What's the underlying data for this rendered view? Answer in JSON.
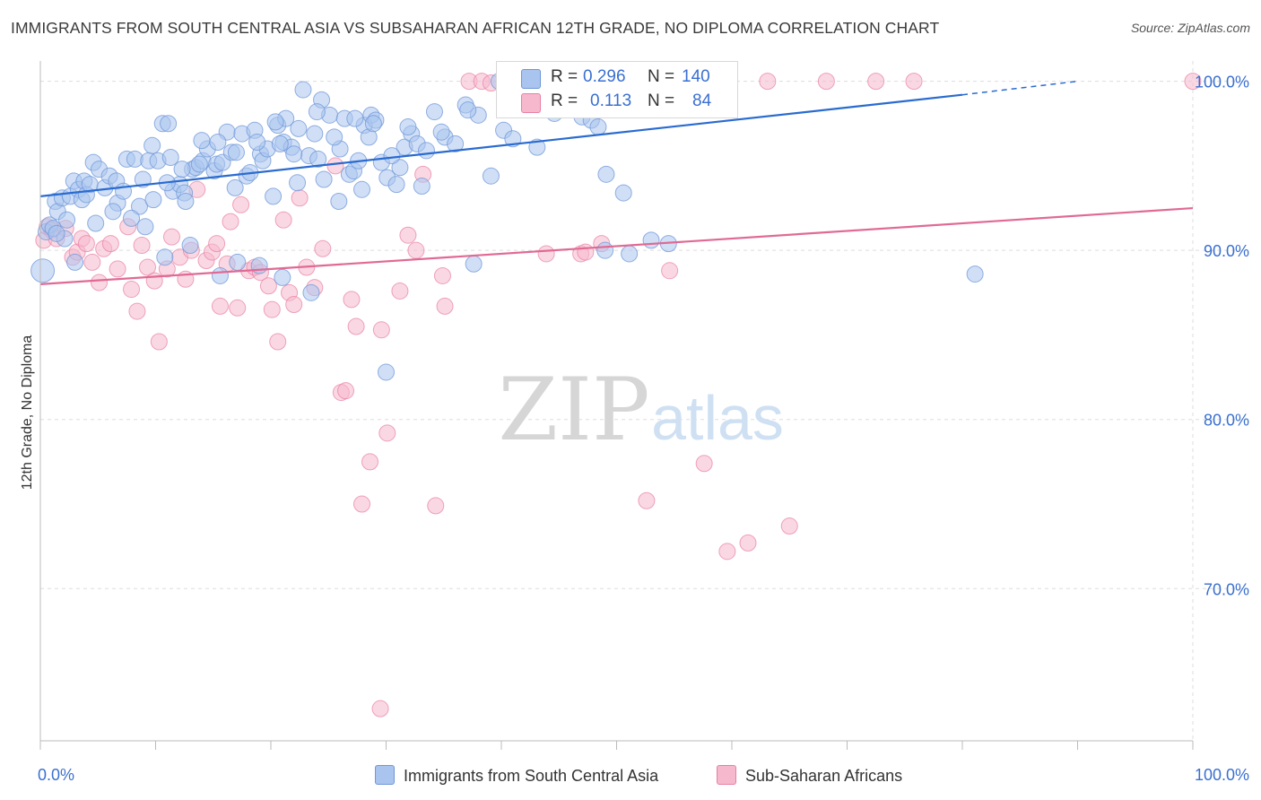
{
  "title": "IMMIGRANTS FROM SOUTH CENTRAL ASIA VS SUBSAHARAN AFRICAN 12TH GRADE, NO DIPLOMA CORRELATION CHART",
  "source": "Source: ZipAtlas.com",
  "watermark": {
    "zip": "ZIP",
    "atlas": "atlas"
  },
  "legend": {
    "r_label": "R =",
    "n_label": "N =",
    "rows": [
      {
        "r": "0.296",
        "n": "140"
      },
      {
        "r": "0.113",
        "n": "84"
      }
    ]
  },
  "colors": {
    "blue_fill": "#a9c4ee",
    "blue_stroke": "#6f97d8",
    "blue_line": "#2a6bd0",
    "pink_fill": "#f6b8cc",
    "pink_stroke": "#e87fa2",
    "pink_line": "#e06a94",
    "tick_label": "#3a6fd1",
    "grid": "#dddddd"
  },
  "chart_data": {
    "type": "scatter",
    "title": "IMMIGRANTS FROM SOUTH CENTRAL ASIA VS SUBSAHARAN AFRICAN 12TH GRADE, NO DIPLOMA CORRELATION CHART",
    "xlabel": "",
    "ylabel": "12th Grade, No Diploma",
    "x_tick_labels": [
      "0.0%",
      "100.0%"
    ],
    "y_tick_labels": [
      "70.0%",
      "80.0%",
      "90.0%",
      "100.0%"
    ],
    "y_ticks": [
      70,
      80,
      90,
      100
    ],
    "xlim": [
      0,
      100
    ],
    "ylim": [
      61.0,
      101.2
    ],
    "grid": true,
    "legend_position": "top-center",
    "series": [
      {
        "name": "Immigrants from South Central Asia",
        "color": "#a9c4ee",
        "trend": {
          "x": [
            0,
            80
          ],
          "y": [
            93.2,
            99.2
          ],
          "dashed_to": [
            90,
            100.0
          ]
        },
        "points": [
          [
            0.2,
            88.8
          ],
          [
            0.5,
            91.1
          ],
          [
            0.8,
            91.5
          ],
          [
            1.1,
            91.3
          ],
          [
            1.3,
            92.9
          ],
          [
            1.5,
            92.3
          ],
          [
            1.9,
            93.1
          ],
          [
            2.1,
            90.7
          ],
          [
            2.6,
            93.2
          ],
          [
            2.9,
            94.1
          ],
          [
            3.3,
            93.6
          ],
          [
            3.6,
            93.0
          ],
          [
            3.8,
            94.1
          ],
          [
            4.0,
            93.3
          ],
          [
            4.3,
            93.9
          ],
          [
            4.6,
            95.2
          ],
          [
            5.1,
            94.8
          ],
          [
            5.6,
            93.7
          ],
          [
            6.0,
            94.4
          ],
          [
            6.6,
            94.1
          ],
          [
            6.7,
            92.8
          ],
          [
            7.2,
            93.5
          ],
          [
            7.5,
            95.4
          ],
          [
            8.2,
            95.4
          ],
          [
            8.6,
            92.6
          ],
          [
            8.9,
            94.2
          ],
          [
            9.4,
            95.3
          ],
          [
            9.7,
            96.2
          ],
          [
            10.2,
            95.3
          ],
          [
            10.6,
            97.5
          ],
          [
            11.1,
            97.5
          ],
          [
            11.3,
            95.5
          ],
          [
            11.5,
            93.5
          ],
          [
            12.1,
            93.9
          ],
          [
            12.5,
            93.4
          ],
          [
            12.6,
            92.9
          ],
          [
            13.2,
            94.8
          ],
          [
            13.5,
            94.9
          ],
          [
            14.1,
            95.3
          ],
          [
            14.5,
            96.0
          ],
          [
            15.1,
            94.7
          ],
          [
            15.3,
            95.1
          ],
          [
            15.8,
            95.2
          ],
          [
            16.2,
            97.0
          ],
          [
            16.9,
            93.7
          ],
          [
            17.5,
            96.9
          ],
          [
            17.9,
            94.4
          ],
          [
            18.6,
            97.1
          ],
          [
            19.1,
            95.7
          ],
          [
            19.3,
            95.3
          ],
          [
            19.7,
            96.0
          ],
          [
            20.2,
            93.2
          ],
          [
            20.6,
            97.4
          ],
          [
            21.1,
            96.4
          ],
          [
            21.3,
            97.8
          ],
          [
            21.8,
            96.1
          ],
          [
            22.3,
            94.0
          ],
          [
            22.8,
            99.5
          ],
          [
            23.3,
            95.6
          ],
          [
            23.8,
            96.9
          ],
          [
            24.1,
            95.4
          ],
          [
            24.4,
            98.9
          ],
          [
            25.1,
            98.0
          ],
          [
            25.9,
            92.9
          ],
          [
            26.4,
            97.8
          ],
          [
            26.8,
            94.5
          ],
          [
            27.2,
            94.7
          ],
          [
            27.6,
            95.3
          ],
          [
            28.1,
            97.4
          ],
          [
            28.5,
            96.7
          ],
          [
            28.7,
            98.0
          ],
          [
            29.1,
            97.7
          ],
          [
            30.1,
            94.3
          ],
          [
            30.9,
            93.9
          ],
          [
            31.6,
            96.1
          ],
          [
            32.2,
            96.9
          ],
          [
            32.7,
            96.3
          ],
          [
            33.1,
            93.8
          ],
          [
            34.2,
            98.2
          ],
          [
            35.1,
            96.7
          ],
          [
            36.0,
            96.3
          ],
          [
            36.9,
            98.6
          ],
          [
            38.0,
            98.0
          ],
          [
            39.1,
            94.4
          ],
          [
            40.2,
            97.1
          ],
          [
            41.0,
            96.6
          ],
          [
            42.3,
            98.4
          ],
          [
            43.1,
            96.1
          ],
          [
            44.2,
            99.2
          ],
          [
            45.1,
            98.3
          ],
          [
            46.3,
            98.9
          ],
          [
            47.0,
            97.9
          ],
          [
            47.8,
            97.7
          ],
          [
            48.4,
            97.3
          ],
          [
            49.1,
            94.5
          ],
          [
            50.6,
            93.4
          ],
          [
            1.4,
            91.0
          ],
          [
            2.3,
            91.8
          ],
          [
            3.0,
            89.3
          ],
          [
            4.8,
            91.6
          ],
          [
            6.3,
            92.3
          ],
          [
            7.9,
            91.9
          ],
          [
            9.1,
            91.4
          ],
          [
            10.8,
            89.6
          ],
          [
            13.0,
            90.3
          ],
          [
            15.6,
            88.5
          ],
          [
            17.1,
            89.3
          ],
          [
            19.0,
            89.1
          ],
          [
            21.0,
            88.4
          ],
          [
            23.5,
            87.5
          ],
          [
            14.0,
            96.5
          ],
          [
            16.6,
            95.8
          ],
          [
            18.2,
            94.6
          ],
          [
            20.8,
            96.3
          ],
          [
            22.0,
            95.7
          ],
          [
            24.6,
            94.2
          ],
          [
            26.0,
            96.0
          ],
          [
            27.9,
            93.6
          ],
          [
            29.6,
            95.2
          ],
          [
            31.2,
            94.9
          ],
          [
            30.0,
            82.8
          ],
          [
            37.6,
            89.2
          ],
          [
            41.5,
            100.0
          ],
          [
            44.6,
            98.1
          ],
          [
            47.5,
            98.6
          ],
          [
            53.0,
            90.6
          ],
          [
            54.5,
            90.4
          ],
          [
            51.1,
            89.8
          ],
          [
            49.0,
            90.0
          ],
          [
            43.7,
            100.0
          ],
          [
            39.8,
            100.0
          ],
          [
            37.1,
            98.3
          ],
          [
            34.8,
            97.0
          ],
          [
            33.5,
            95.9
          ],
          [
            31.9,
            97.3
          ],
          [
            30.5,
            95.6
          ],
          [
            28.9,
            97.5
          ],
          [
            27.3,
            97.8
          ],
          [
            25.5,
            96.7
          ],
          [
            24.0,
            98.2
          ],
          [
            22.4,
            97.2
          ],
          [
            20.4,
            97.6
          ],
          [
            18.8,
            96.4
          ],
          [
            17.0,
            95.8
          ],
          [
            15.4,
            96.4
          ],
          [
            13.8,
            95.1
          ],
          [
            12.3,
            94.8
          ],
          [
            11.0,
            94.0
          ],
          [
            81.1,
            88.6
          ],
          [
            9.8,
            93.0
          ]
        ]
      },
      {
        "name": "Sub-Saharan Africans",
        "color": "#f6b8cc",
        "trend": {
          "x": [
            0,
            100
          ],
          "y": [
            88.0,
            92.5
          ]
        },
        "points": [
          [
            0.3,
            90.6
          ],
          [
            0.6,
            91.4
          ],
          [
            1.0,
            91.2
          ],
          [
            1.4,
            90.7
          ],
          [
            2.2,
            91.3
          ],
          [
            2.8,
            89.6
          ],
          [
            3.2,
            89.9
          ],
          [
            3.6,
            90.7
          ],
          [
            4.0,
            90.4
          ],
          [
            4.5,
            89.3
          ],
          [
            5.1,
            88.1
          ],
          [
            5.5,
            90.1
          ],
          [
            6.1,
            90.4
          ],
          [
            6.7,
            88.9
          ],
          [
            7.6,
            91.4
          ],
          [
            7.9,
            87.7
          ],
          [
            8.4,
            86.4
          ],
          [
            8.8,
            90.3
          ],
          [
            9.3,
            89.0
          ],
          [
            9.9,
            88.2
          ],
          [
            10.3,
            84.6
          ],
          [
            11.0,
            88.9
          ],
          [
            11.4,
            90.8
          ],
          [
            12.1,
            89.6
          ],
          [
            12.6,
            88.3
          ],
          [
            13.1,
            90.0
          ],
          [
            13.6,
            93.6
          ],
          [
            14.4,
            89.4
          ],
          [
            14.9,
            89.9
          ],
          [
            15.3,
            90.4
          ],
          [
            15.6,
            86.7
          ],
          [
            16.2,
            89.2
          ],
          [
            16.5,
            91.7
          ],
          [
            17.1,
            86.6
          ],
          [
            17.4,
            92.7
          ],
          [
            18.1,
            88.8
          ],
          [
            18.6,
            89.0
          ],
          [
            19.1,
            88.7
          ],
          [
            19.8,
            87.9
          ],
          [
            20.1,
            86.5
          ],
          [
            20.6,
            84.6
          ],
          [
            21.1,
            91.8
          ],
          [
            21.6,
            87.5
          ],
          [
            22.0,
            86.8
          ],
          [
            22.5,
            93.1
          ],
          [
            23.1,
            89.0
          ],
          [
            23.8,
            87.8
          ],
          [
            24.5,
            90.1
          ],
          [
            25.6,
            95.0
          ],
          [
            26.1,
            81.6
          ],
          [
            26.5,
            81.7
          ],
          [
            27.0,
            87.1
          ],
          [
            27.4,
            85.5
          ],
          [
            27.9,
            75.0
          ],
          [
            28.6,
            77.5
          ],
          [
            29.6,
            85.3
          ],
          [
            30.1,
            79.2
          ],
          [
            31.2,
            87.6
          ],
          [
            31.9,
            90.9
          ],
          [
            32.6,
            90.0
          ],
          [
            34.3,
            74.9
          ],
          [
            33.2,
            94.5
          ],
          [
            34.9,
            88.5
          ],
          [
            35.1,
            86.7
          ],
          [
            37.2,
            100.0
          ],
          [
            38.3,
            100.0
          ],
          [
            39.1,
            99.9
          ],
          [
            43.9,
            89.8
          ],
          [
            46.9,
            89.8
          ],
          [
            47.3,
            89.9
          ],
          [
            48.7,
            90.4
          ],
          [
            50.1,
            100.0
          ],
          [
            52.6,
            75.2
          ],
          [
            54.6,
            88.8
          ],
          [
            57.6,
            77.4
          ],
          [
            59.6,
            72.2
          ],
          [
            61.4,
            72.7
          ],
          [
            63.1,
            100.0
          ],
          [
            65.0,
            73.7
          ],
          [
            68.2,
            100.0
          ],
          [
            72.5,
            100.0
          ],
          [
            75.8,
            100.0
          ],
          [
            100.0,
            100.0
          ],
          [
            29.5,
            62.9
          ]
        ]
      }
    ]
  }
}
